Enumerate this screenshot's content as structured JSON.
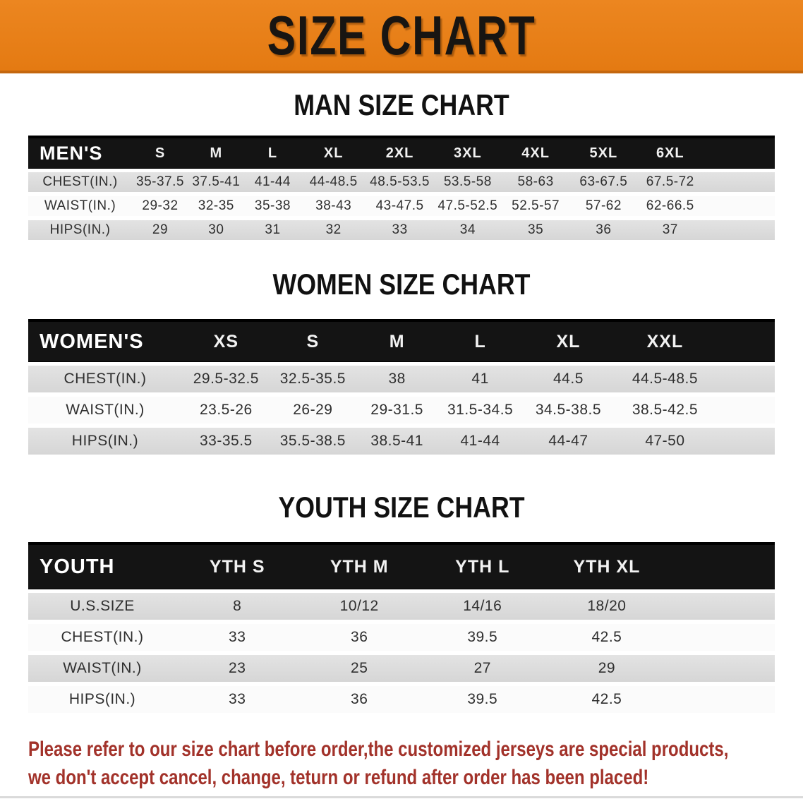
{
  "banner": {
    "title": "SIZE CHART"
  },
  "colors": {
    "banner_bg": "#E8811B",
    "banner_edge": "#C4670E",
    "table_header_bg": "#141414",
    "row_gray": "#DBDBDB",
    "row_light": "#FBFBFB",
    "disclaimer_text": "#A2322A"
  },
  "sections": [
    {
      "id": "men",
      "heading": "MAN SIZE CHART",
      "corner_label": "MEN'S",
      "sizes": [
        "S",
        "M",
        "L",
        "XL",
        "2XL",
        "3XL",
        "4XL",
        "5XL",
        "6XL"
      ],
      "rows": [
        {
          "label": "CHEST(IN.)",
          "values": [
            "35-37.5",
            "37.5-41",
            "41-44",
            "44-48.5",
            "48.5-53.5",
            "53.5-58",
            "58-63",
            "63-67.5",
            "67.5-72"
          ]
        },
        {
          "label": "WAIST(IN.)",
          "values": [
            "29-32",
            "32-35",
            "35-38",
            "38-43",
            "43-47.5",
            "47.5-52.5",
            "52.5-57",
            "57-62",
            "62-66.5"
          ]
        },
        {
          "label": "HIPS(IN.)",
          "values": [
            "29",
            "30",
            "31",
            "32",
            "33",
            "34",
            "35",
            "36",
            "37"
          ]
        }
      ]
    },
    {
      "id": "women",
      "heading": "WOMEN SIZE CHART",
      "corner_label": "WOMEN'S",
      "sizes": [
        "XS",
        "S",
        "M",
        "L",
        "XL",
        "XXL"
      ],
      "rows": [
        {
          "label": "CHEST(IN.)",
          "values": [
            "29.5-32.5",
            "32.5-35.5",
            "38",
            "41",
            "44.5",
            "44.5-48.5"
          ]
        },
        {
          "label": "WAIST(IN.)",
          "values": [
            "23.5-26",
            "26-29",
            "29-31.5",
            "31.5-34.5",
            "34.5-38.5",
            "38.5-42.5"
          ]
        },
        {
          "label": "HIPS(IN.)",
          "values": [
            "33-35.5",
            "35.5-38.5",
            "38.5-41",
            "41-44",
            "44-47",
            "47-50"
          ]
        }
      ]
    },
    {
      "id": "youth",
      "heading": "YOUTH SIZE CHART",
      "corner_label": "YOUTH",
      "sizes": [
        "YTH S",
        "YTH M",
        "YTH L",
        "YTH XL"
      ],
      "rows": [
        {
          "label": "U.S.SIZE",
          "values": [
            "8",
            "10/12",
            "14/16",
            "18/20"
          ]
        },
        {
          "label": "CHEST(IN.)",
          "values": [
            "33",
            "36",
            "39.5",
            "42.5"
          ]
        },
        {
          "label": "WAIST(IN.)",
          "values": [
            "23",
            "25",
            "27",
            "29"
          ]
        },
        {
          "label": "HIPS(IN.)",
          "values": [
            "33",
            "36",
            "39.5",
            "42.5"
          ]
        }
      ]
    }
  ],
  "disclaimer": {
    "lines": [
      "Please refer to our size chart before order,the customized jerseys are special products,",
      "we don't accept cancel, change, teturn or refund after order has been placed!"
    ]
  }
}
